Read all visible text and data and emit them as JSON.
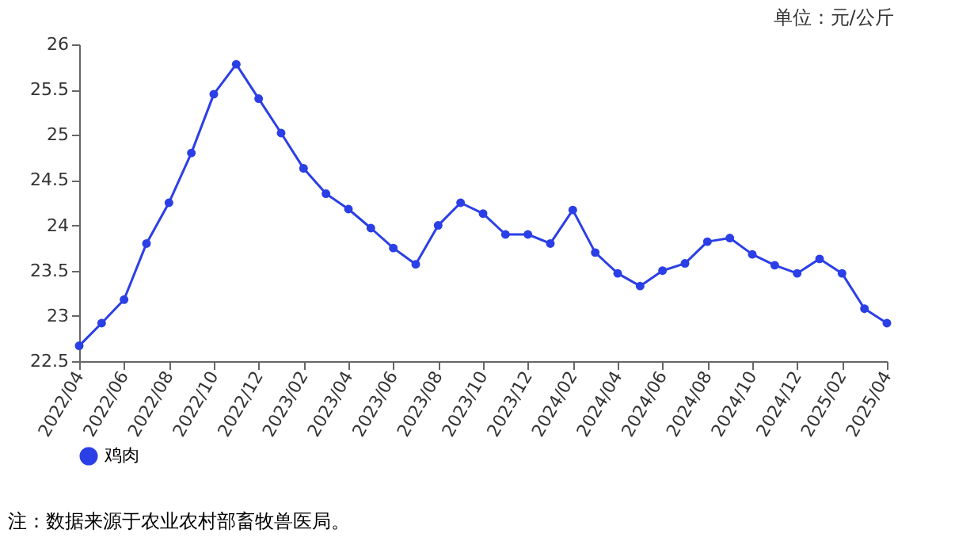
{
  "chart_data": {
    "type": "line",
    "annotations": [
      "单位：元/公斤",
      "注：数据来源于农业农村部畜牧兽医局。"
    ],
    "categories": [
      "2022/04",
      null,
      "2022/06",
      null,
      "2022/08",
      null,
      "2022/10",
      null,
      "2022/12",
      null,
      "2023/02",
      null,
      "2023/04",
      null,
      "2023/06",
      null,
      "2023/08",
      null,
      "2023/10",
      null,
      "2023/12",
      null,
      "2024/02",
      null,
      "2024/04",
      null,
      "2024/06",
      null,
      "2024/08",
      null,
      "2024/10",
      null,
      "2024/12",
      null,
      "2025/02",
      null,
      "2025/04"
    ],
    "series": [
      {
        "name": "鸡肉",
        "color": "#2b3fe6",
        "values": [
          22.67,
          22.92,
          23.18,
          23.8,
          24.25,
          24.8,
          25.45,
          25.78,
          25.4,
          25.02,
          24.63,
          24.35,
          24.18,
          23.97,
          23.75,
          23.57,
          24.0,
          24.25,
          24.13,
          23.9,
          23.9,
          23.8,
          24.17,
          23.7,
          23.47,
          23.33,
          23.5,
          23.58,
          23.82,
          23.86,
          23.68,
          23.56,
          23.47,
          23.63,
          23.47,
          23.08,
          22.92
        ]
      }
    ],
    "ylim": [
      22.5,
      26
    ],
    "yticks": [
      22.5,
      23,
      23.5,
      24,
      24.5,
      25,
      25.5,
      26
    ],
    "grid": false,
    "legend": "bottom",
    "marker": "circle",
    "line_style": "solid"
  }
}
